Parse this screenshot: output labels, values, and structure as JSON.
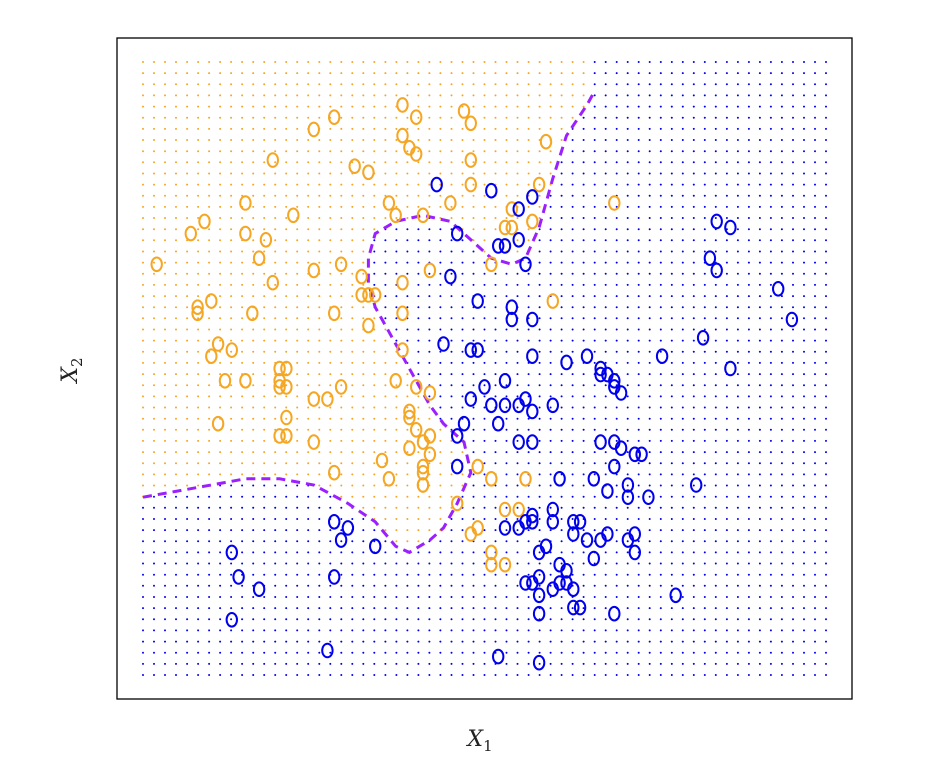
{
  "chart_data": {
    "type": "scatter",
    "title": "",
    "xlabel": "X",
    "xlabel_subscript": "1",
    "ylabel": "X",
    "ylabel_subscript": "2",
    "xlim": [
      0,
      1
    ],
    "ylim": [
      0,
      1
    ],
    "ticks_shown": false,
    "grid": false,
    "legend": "none",
    "marker": "O",
    "colors": {
      "orange": "#f5a623",
      "blue": "#0000ee",
      "boundary": "#9b1fff",
      "frame": "#000000"
    },
    "decision_boundary": {
      "style": "dashed",
      "points": [
        [
          0.0,
          0.29
        ],
        [
          0.05,
          0.3
        ],
        [
          0.1,
          0.31
        ],
        [
          0.15,
          0.32
        ],
        [
          0.2,
          0.32
        ],
        [
          0.25,
          0.31
        ],
        [
          0.3,
          0.28
        ],
        [
          0.34,
          0.25
        ],
        [
          0.37,
          0.21
        ],
        [
          0.39,
          0.2
        ],
        [
          0.42,
          0.22
        ],
        [
          0.44,
          0.24
        ],
        [
          0.46,
          0.28
        ],
        [
          0.48,
          0.33
        ],
        [
          0.47,
          0.38
        ],
        [
          0.44,
          0.41
        ],
        [
          0.42,
          0.44
        ],
        [
          0.4,
          0.48
        ],
        [
          0.38,
          0.52
        ],
        [
          0.36,
          0.56
        ],
        [
          0.34,
          0.6
        ],
        [
          0.33,
          0.64
        ],
        [
          0.33,
          0.68
        ],
        [
          0.34,
          0.72
        ],
        [
          0.37,
          0.74
        ],
        [
          0.41,
          0.75
        ],
        [
          0.45,
          0.74
        ],
        [
          0.48,
          0.71
        ],
        [
          0.51,
          0.68
        ],
        [
          0.54,
          0.67
        ],
        [
          0.56,
          0.68
        ],
        [
          0.58,
          0.73
        ],
        [
          0.6,
          0.81
        ],
        [
          0.62,
          0.88
        ],
        [
          0.65,
          0.93
        ],
        [
          0.66,
          0.95
        ]
      ]
    },
    "series": [
      {
        "color": "#f5a623",
        "points": [
          [
            0.38,
            0.93
          ],
          [
            0.4,
            0.91
          ],
          [
            0.47,
            0.92
          ],
          [
            0.48,
            0.9
          ],
          [
            0.25,
            0.89
          ],
          [
            0.28,
            0.91
          ],
          [
            0.38,
            0.88
          ],
          [
            0.39,
            0.86
          ],
          [
            0.4,
            0.85
          ],
          [
            0.48,
            0.84
          ],
          [
            0.59,
            0.87
          ],
          [
            0.58,
            0.8
          ],
          [
            0.19,
            0.84
          ],
          [
            0.31,
            0.83
          ],
          [
            0.33,
            0.82
          ],
          [
            0.48,
            0.8
          ],
          [
            0.15,
            0.77
          ],
          [
            0.36,
            0.77
          ],
          [
            0.41,
            0.75
          ],
          [
            0.37,
            0.75
          ],
          [
            0.45,
            0.77
          ],
          [
            0.53,
            0.73
          ],
          [
            0.54,
            0.73
          ],
          [
            0.22,
            0.75
          ],
          [
            0.07,
            0.72
          ],
          [
            0.09,
            0.74
          ],
          [
            0.15,
            0.72
          ],
          [
            0.18,
            0.71
          ],
          [
            0.17,
            0.68
          ],
          [
            0.02,
            0.67
          ],
          [
            0.25,
            0.66
          ],
          [
            0.29,
            0.67
          ],
          [
            0.32,
            0.65
          ],
          [
            0.38,
            0.64
          ],
          [
            0.42,
            0.66
          ],
          [
            0.32,
            0.62
          ],
          [
            0.33,
            0.62
          ],
          [
            0.34,
            0.62
          ],
          [
            0.19,
            0.64
          ],
          [
            0.1,
            0.61
          ],
          [
            0.08,
            0.6
          ],
          [
            0.08,
            0.59
          ],
          [
            0.16,
            0.59
          ],
          [
            0.28,
            0.59
          ],
          [
            0.38,
            0.59
          ],
          [
            0.33,
            0.57
          ],
          [
            0.11,
            0.54
          ],
          [
            0.13,
            0.53
          ],
          [
            0.1,
            0.52
          ],
          [
            0.38,
            0.53
          ],
          [
            0.2,
            0.5
          ],
          [
            0.21,
            0.5
          ],
          [
            0.12,
            0.48
          ],
          [
            0.15,
            0.48
          ],
          [
            0.2,
            0.48
          ],
          [
            0.2,
            0.47
          ],
          [
            0.21,
            0.47
          ],
          [
            0.37,
            0.48
          ],
          [
            0.4,
            0.47
          ],
          [
            0.29,
            0.47
          ],
          [
            0.25,
            0.45
          ],
          [
            0.27,
            0.45
          ],
          [
            0.42,
            0.46
          ],
          [
            0.39,
            0.43
          ],
          [
            0.39,
            0.42
          ],
          [
            0.21,
            0.42
          ],
          [
            0.11,
            0.41
          ],
          [
            0.4,
            0.4
          ],
          [
            0.2,
            0.39
          ],
          [
            0.21,
            0.39
          ],
          [
            0.25,
            0.38
          ],
          [
            0.42,
            0.39
          ],
          [
            0.41,
            0.38
          ],
          [
            0.39,
            0.37
          ],
          [
            0.42,
            0.36
          ],
          [
            0.35,
            0.35
          ],
          [
            0.41,
            0.34
          ],
          [
            0.28,
            0.33
          ],
          [
            0.41,
            0.33
          ],
          [
            0.36,
            0.32
          ],
          [
            0.41,
            0.31
          ],
          [
            0.41,
            0.31
          ],
          [
            0.49,
            0.34
          ],
          [
            0.56,
            0.32
          ],
          [
            0.51,
            0.32
          ],
          [
            0.46,
            0.28
          ],
          [
            0.53,
            0.27
          ],
          [
            0.55,
            0.27
          ],
          [
            0.49,
            0.24
          ],
          [
            0.48,
            0.23
          ],
          [
            0.51,
            0.2
          ],
          [
            0.51,
            0.18
          ],
          [
            0.53,
            0.18
          ],
          [
            0.57,
            0.74
          ],
          [
            0.54,
            0.76
          ],
          [
            0.69,
            0.77
          ],
          [
            0.6,
            0.61
          ],
          [
            0.51,
            0.67
          ]
        ]
      },
      {
        "color": "#0000ee",
        "points": [
          [
            0.43,
            0.8
          ],
          [
            0.51,
            0.79
          ],
          [
            0.55,
            0.76
          ],
          [
            0.57,
            0.78
          ],
          [
            0.46,
            0.72
          ],
          [
            0.52,
            0.7
          ],
          [
            0.53,
            0.7
          ],
          [
            0.55,
            0.71
          ],
          [
            0.56,
            0.67
          ],
          [
            0.45,
            0.65
          ],
          [
            0.49,
            0.61
          ],
          [
            0.54,
            0.6
          ],
          [
            0.54,
            0.58
          ],
          [
            0.57,
            0.58
          ],
          [
            0.84,
            0.74
          ],
          [
            0.86,
            0.73
          ],
          [
            0.83,
            0.68
          ],
          [
            0.84,
            0.66
          ],
          [
            0.93,
            0.63
          ],
          [
            0.95,
            0.58
          ],
          [
            0.82,
            0.55
          ],
          [
            0.86,
            0.5
          ],
          [
            0.76,
            0.52
          ],
          [
            0.65,
            0.52
          ],
          [
            0.67,
            0.49
          ],
          [
            0.44,
            0.54
          ],
          [
            0.48,
            0.53
          ],
          [
            0.49,
            0.53
          ],
          [
            0.5,
            0.47
          ],
          [
            0.53,
            0.48
          ],
          [
            0.57,
            0.52
          ],
          [
            0.62,
            0.51
          ],
          [
            0.67,
            0.5
          ],
          [
            0.68,
            0.49
          ],
          [
            0.69,
            0.48
          ],
          [
            0.69,
            0.47
          ],
          [
            0.7,
            0.46
          ],
          [
            0.48,
            0.45
          ],
          [
            0.51,
            0.44
          ],
          [
            0.53,
            0.44
          ],
          [
            0.55,
            0.44
          ],
          [
            0.56,
            0.45
          ],
          [
            0.57,
            0.43
          ],
          [
            0.6,
            0.44
          ],
          [
            0.52,
            0.41
          ],
          [
            0.47,
            0.41
          ],
          [
            0.46,
            0.39
          ],
          [
            0.55,
            0.38
          ],
          [
            0.57,
            0.38
          ],
          [
            0.67,
            0.38
          ],
          [
            0.69,
            0.38
          ],
          [
            0.7,
            0.37
          ],
          [
            0.72,
            0.36
          ],
          [
            0.69,
            0.34
          ],
          [
            0.66,
            0.32
          ],
          [
            0.68,
            0.3
          ],
          [
            0.71,
            0.31
          ],
          [
            0.74,
            0.29
          ],
          [
            0.81,
            0.31
          ],
          [
            0.61,
            0.32
          ],
          [
            0.46,
            0.34
          ],
          [
            0.73,
            0.36
          ],
          [
            0.71,
            0.29
          ],
          [
            0.57,
            0.26
          ],
          [
            0.6,
            0.27
          ],
          [
            0.6,
            0.25
          ],
          [
            0.63,
            0.25
          ],
          [
            0.64,
            0.25
          ],
          [
            0.63,
            0.23
          ],
          [
            0.65,
            0.22
          ],
          [
            0.67,
            0.22
          ],
          [
            0.68,
            0.23
          ],
          [
            0.71,
            0.22
          ],
          [
            0.72,
            0.23
          ],
          [
            0.53,
            0.24
          ],
          [
            0.55,
            0.24
          ],
          [
            0.56,
            0.25
          ],
          [
            0.57,
            0.25
          ],
          [
            0.28,
            0.25
          ],
          [
            0.3,
            0.24
          ],
          [
            0.29,
            0.22
          ],
          [
            0.34,
            0.21
          ],
          [
            0.58,
            0.2
          ],
          [
            0.59,
            0.21
          ],
          [
            0.61,
            0.18
          ],
          [
            0.62,
            0.17
          ],
          [
            0.66,
            0.19
          ],
          [
            0.72,
            0.2
          ],
          [
            0.13,
            0.2
          ],
          [
            0.14,
            0.16
          ],
          [
            0.17,
            0.14
          ],
          [
            0.28,
            0.16
          ],
          [
            0.58,
            0.13
          ],
          [
            0.6,
            0.14
          ],
          [
            0.61,
            0.15
          ],
          [
            0.62,
            0.15
          ],
          [
            0.63,
            0.14
          ],
          [
            0.56,
            0.15
          ],
          [
            0.57,
            0.15
          ],
          [
            0.58,
            0.16
          ],
          [
            0.78,
            0.13
          ],
          [
            0.13,
            0.09
          ],
          [
            0.27,
            0.04
          ],
          [
            0.52,
            0.03
          ],
          [
            0.58,
            0.02
          ],
          [
            0.58,
            0.1
          ],
          [
            0.63,
            0.11
          ],
          [
            0.64,
            0.11
          ],
          [
            0.69,
            0.1
          ]
        ]
      }
    ]
  }
}
